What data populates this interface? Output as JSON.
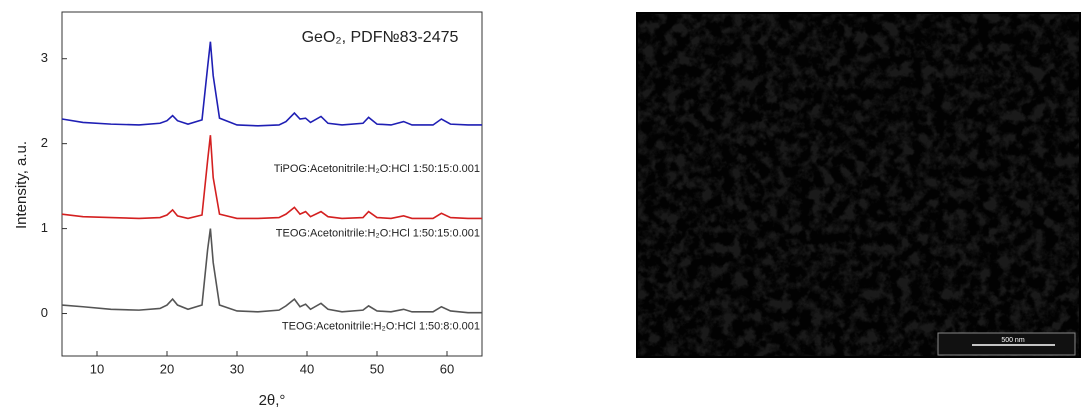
{
  "chart_data": {
    "type": "line",
    "title": "GeO₂, PDF№83-2475",
    "x_label": "2θ,°",
    "y_label": "Intensity, a.u.",
    "x": [
      5,
      8,
      12,
      16,
      19,
      20,
      20.8,
      21.5,
      23,
      25,
      25.8,
      26.2,
      26.6,
      27.5,
      30,
      33,
      36,
      37,
      38.2,
      39,
      39.8,
      40.5,
      42,
      43,
      45,
      48,
      48.8,
      50,
      52,
      53.8,
      55,
      58,
      59.2,
      60.5,
      63,
      65
    ],
    "series": [
      {
        "name": "TiPOG:Acetonitrile:H₂O:HCl 1:50:15:0.001",
        "color": "#1f1fb4",
        "values": [
          2.29,
          2.25,
          2.23,
          2.22,
          2.24,
          2.27,
          2.33,
          2.27,
          2.23,
          2.28,
          2.9,
          3.2,
          2.8,
          2.3,
          2.22,
          2.21,
          2.22,
          2.26,
          2.36,
          2.29,
          2.3,
          2.25,
          2.32,
          2.24,
          2.22,
          2.24,
          2.31,
          2.23,
          2.22,
          2.26,
          2.22,
          2.22,
          2.29,
          2.23,
          2.22,
          2.22
        ]
      },
      {
        "name": "TEOG:Acetonitrile:H₂O:HCl 1:50:15:0.001",
        "color": "#d42020",
        "values": [
          1.17,
          1.14,
          1.13,
          1.12,
          1.13,
          1.16,
          1.22,
          1.15,
          1.12,
          1.16,
          1.8,
          2.1,
          1.6,
          1.17,
          1.12,
          1.12,
          1.13,
          1.17,
          1.25,
          1.17,
          1.2,
          1.14,
          1.2,
          1.14,
          1.12,
          1.13,
          1.2,
          1.13,
          1.12,
          1.15,
          1.12,
          1.12,
          1.18,
          1.13,
          1.12,
          1.12
        ]
      },
      {
        "name": "TEOG:Acetonitrile:H₂O:HCl 1:50:8:0.001",
        "color": "#555555",
        "values": [
          0.1,
          0.08,
          0.05,
          0.04,
          0.06,
          0.1,
          0.17,
          0.1,
          0.05,
          0.1,
          0.75,
          1.0,
          0.6,
          0.1,
          0.03,
          0.02,
          0.04,
          0.09,
          0.17,
          0.08,
          0.11,
          0.05,
          0.12,
          0.05,
          0.02,
          0.04,
          0.09,
          0.03,
          0.02,
          0.05,
          0.02,
          0.02,
          0.08,
          0.03,
          0.01,
          0.01
        ]
      }
    ],
    "xlim": [
      5,
      65
    ],
    "xticks": [
      10,
      20,
      30,
      40,
      50,
      60
    ],
    "ylim": [
      -0.5,
      3.55
    ],
    "yticks": [
      0,
      1,
      2,
      3
    ]
  },
  "image": {
    "scale_bar": "500 nm"
  }
}
